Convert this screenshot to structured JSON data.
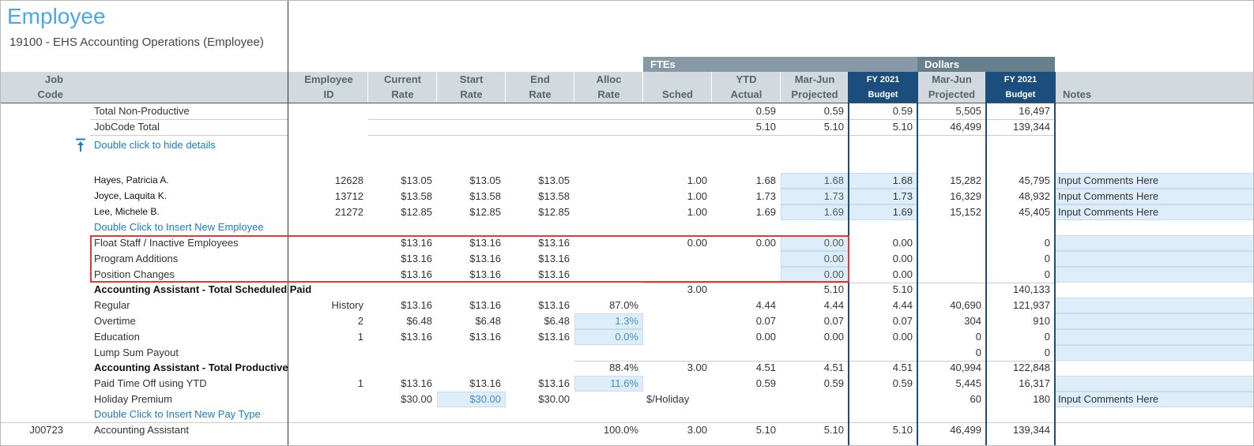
{
  "header": {
    "title": "Employee",
    "subtitle": "19100 - EHS Accounting Operations (Employee)"
  },
  "table": {
    "groups": [
      "FTEs",
      "Dollars"
    ],
    "columns": [
      [
        "Job",
        "Code"
      ],
      null,
      [
        "Employee",
        "ID"
      ],
      [
        "Current",
        "Rate"
      ],
      [
        "Start",
        "Rate"
      ],
      [
        "End",
        "Rate"
      ],
      [
        "Alloc",
        "Rate"
      ],
      [
        "Sched"
      ],
      [
        "YTD",
        "Actual"
      ],
      [
        "Mar-Jun",
        "Projected"
      ],
      [
        "FY 2021",
        "Budget"
      ],
      [
        "Mar-Jun",
        "Projected"
      ],
      [
        "FY 2021",
        "Budget"
      ],
      [
        "Notes"
      ]
    ],
    "rows": [
      [
        null,
        "Total Non-Productive",
        null,
        null,
        null,
        null,
        null,
        null,
        "0.59",
        "0.59",
        "0.59",
        "5,505",
        "16,497",
        null
      ],
      [
        null,
        "JobCode Total",
        null,
        null,
        null,
        null,
        null,
        null,
        "5.10",
        "5.10",
        "5.10",
        "46,499",
        "139,344",
        null
      ],
      [
        null,
        "Double click to hide details",
        null,
        null,
        null,
        null,
        null,
        null,
        null,
        null,
        null,
        null,
        null,
        null
      ],
      [
        null,
        "Hayes, Patricia A.",
        "12628",
        "$13.05",
        "$13.05",
        "$13.05",
        null,
        "1.00",
        "1.68",
        "1.68",
        "1.68",
        "15,282",
        "45,795",
        "Input Comments Here"
      ],
      [
        null,
        "Joyce, Laquita K.",
        "13712",
        "$13.58",
        "$13.58",
        "$13.58",
        null,
        "1.00",
        "1.73",
        "1.73",
        "1.73",
        "16,329",
        "48,932",
        "Input Comments Here"
      ],
      [
        null,
        "Lee, Michele B.",
        "21272",
        "$12.85",
        "$12.85",
        "$12.85",
        null,
        "1.00",
        "1.69",
        "1.69",
        "1.69",
        "15,152",
        "45,405",
        "Input Comments Here"
      ],
      [
        null,
        "Double Click to Insert New Employee",
        null,
        null,
        null,
        null,
        null,
        null,
        null,
        null,
        null,
        null,
        null,
        null
      ],
      [
        null,
        "Float Staff / Inactive Employees",
        null,
        "$13.16",
        "$13.16",
        "$13.16",
        null,
        "0.00",
        "0.00",
        "0.00",
        "0.00",
        null,
        "0",
        null
      ],
      [
        null,
        "Program Additions",
        null,
        "$13.16",
        "$13.16",
        "$13.16",
        null,
        null,
        null,
        "0.00",
        "0.00",
        null,
        "0",
        null
      ],
      [
        null,
        "Position Changes",
        null,
        "$13.16",
        "$13.16",
        "$13.16",
        null,
        null,
        null,
        "0.00",
        "0.00",
        null,
        "0",
        null
      ],
      [
        null,
        "Accounting Assistant - Total Scheduled Paid",
        null,
        null,
        null,
        null,
        null,
        "3.00",
        null,
        "5.10",
        "5.10",
        null,
        "140,133",
        null
      ],
      [
        null,
        "Regular",
        "History",
        "$13.16",
        "$13.16",
        "$13.16",
        "87.0%",
        null,
        "4.44",
        "4.44",
        "4.44",
        "40,690",
        "121,937",
        null
      ],
      [
        null,
        "Overtime",
        "2",
        "$6.48",
        "$6.48",
        "$6.48",
        "1.3%",
        null,
        "0.07",
        "0.07",
        "0.07",
        "304",
        "910",
        null
      ],
      [
        null,
        "Education",
        "1",
        "$13.16",
        "$13.16",
        "$13.16",
        "0.0%",
        null,
        "0.00",
        "0.00",
        "0.00",
        "0",
        "0",
        null
      ],
      [
        null,
        "Lump Sum Payout",
        null,
        null,
        null,
        null,
        null,
        null,
        null,
        null,
        null,
        "0",
        "0",
        null
      ],
      [
        null,
        "Accounting Assistant - Total Productive",
        null,
        null,
        null,
        null,
        "88.4%",
        "3.00",
        "4.51",
        "4.51",
        "4.51",
        "40,994",
        "122,848",
        null
      ],
      [
        null,
        "Paid Time Off using YTD",
        "1",
        "$13.16",
        "$13.16",
        "$13.16",
        "11.6%",
        null,
        "0.59",
        "0.59",
        "0.59",
        "5,445",
        "16,317",
        null
      ],
      [
        null,
        "Holiday Premium",
        null,
        "$30.00",
        "$30.00",
        "$30.00",
        null,
        "$/Holiday",
        null,
        null,
        null,
        "60",
        "180",
        "Input Comments Here"
      ],
      [
        null,
        "Double Click to Insert New Pay Type",
        null,
        null,
        null,
        null,
        null,
        null,
        null,
        null,
        null,
        null,
        null,
        null
      ],
      [
        "J00723",
        "Accounting Assistant",
        null,
        null,
        null,
        null,
        "100.0%",
        "3.00",
        "5.10",
        "5.10",
        "5.10",
        "46,499",
        "139,344",
        null
      ]
    ]
  }
}
